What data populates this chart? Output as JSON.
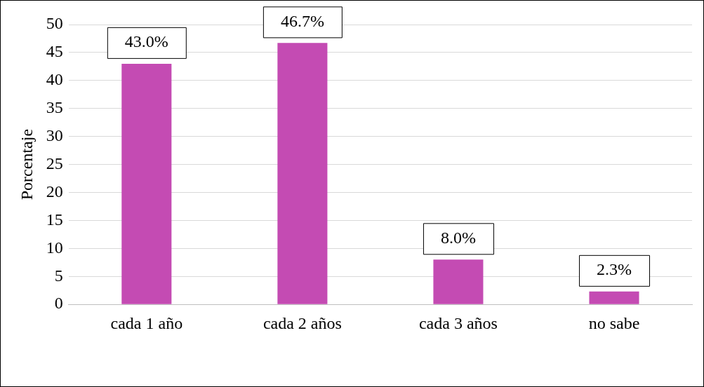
{
  "chart_data": {
    "type": "bar",
    "ylabel": "Porcentaje",
    "categories": [
      "cada 1 año",
      "cada 2 años",
      "cada 3 años",
      "no sabe"
    ],
    "values": [
      43.0,
      46.7,
      8.0,
      2.3
    ],
    "value_labels": [
      "43.0%",
      "46.7%",
      "8.0%",
      "2.3%"
    ],
    "color": "#c44bb3",
    "ylim": [
      0,
      50
    ],
    "yticks": [
      0,
      5,
      10,
      15,
      20,
      25,
      30,
      35,
      40,
      45,
      50
    ],
    "grid": "y",
    "legend": false
  }
}
